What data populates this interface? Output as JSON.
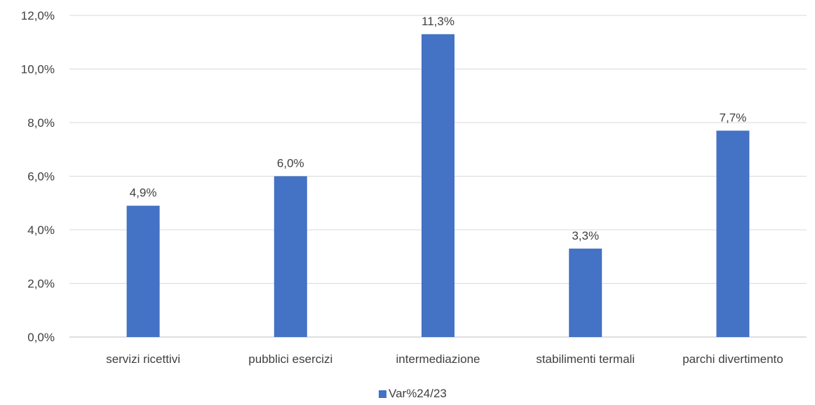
{
  "chart_data": {
    "type": "bar",
    "categories": [
      "servizi ricettivi",
      "pubblici esercizi",
      "intermediazione",
      "stabilimenti termali",
      "parchi divertimento"
    ],
    "series": [
      {
        "name": "Var%24/23",
        "values": [
          4.9,
          6.0,
          11.3,
          3.3,
          7.7
        ],
        "data_labels": [
          "4,9%",
          "6,0%",
          "11,3%",
          "3,3%",
          "7,7%"
        ],
        "color": "#4472C4"
      }
    ],
    "ylim": [
      0,
      12
    ],
    "y_ticks": [
      0,
      2,
      4,
      6,
      8,
      10,
      12
    ],
    "y_tick_labels": [
      "0,0%",
      "2,0%",
      "4,0%",
      "6,0%",
      "8,0%",
      "10,0%",
      "12,0%"
    ],
    "grid": true,
    "legend_position": "bottom",
    "colors": {
      "bar": "#4472C4",
      "grid": "#d9d9d9",
      "axis": "#bfbfbf",
      "text": "#404040"
    }
  }
}
